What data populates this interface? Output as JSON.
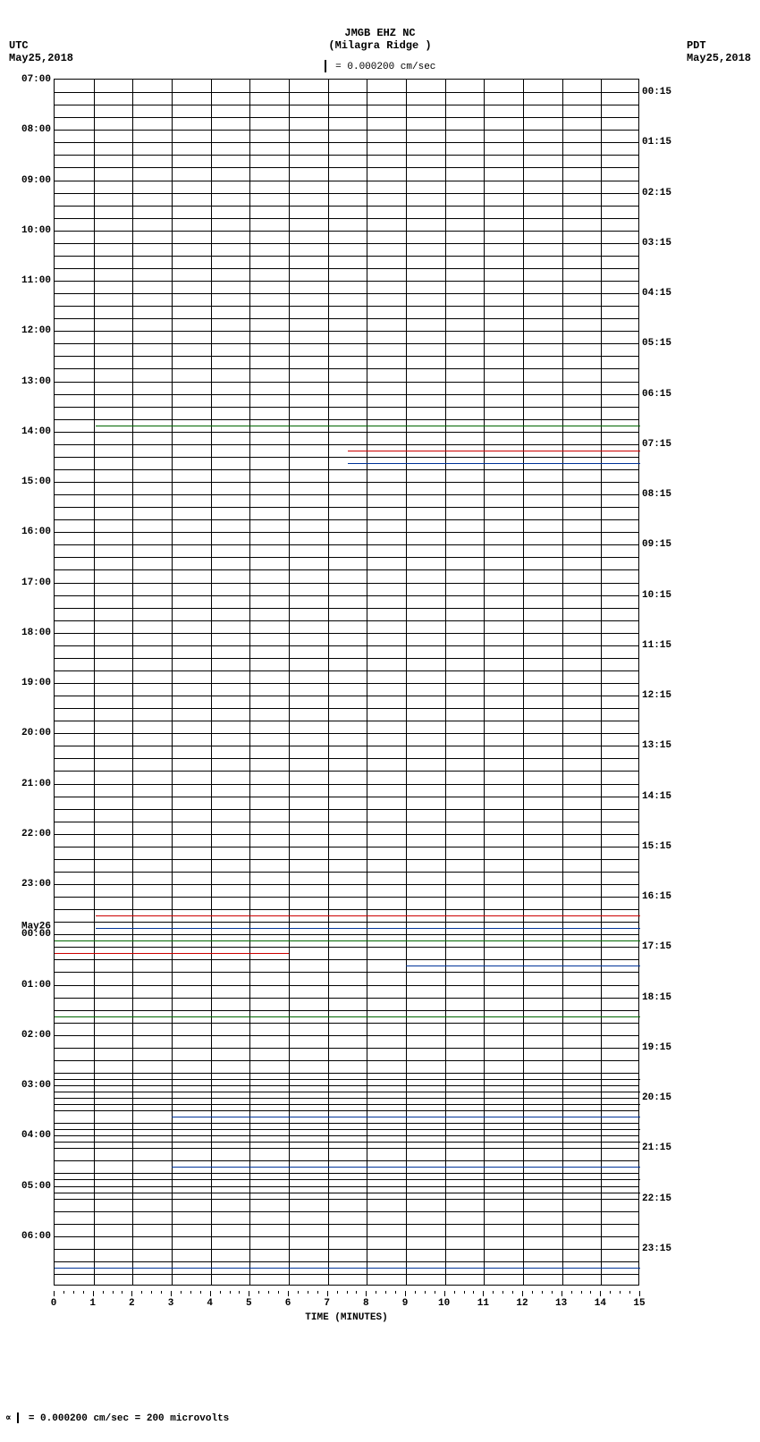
{
  "title": {
    "station": "JMGB EHZ NC",
    "location": "(Milagra Ridge )",
    "scale_text": " = 0.000200 cm/sec"
  },
  "timezone_left": {
    "label": "UTC",
    "date": "May25,2018"
  },
  "timezone_right": {
    "label": "PDT",
    "date": "May25,2018"
  },
  "chart": {
    "type": "seismogram",
    "background_color": "#ffffff",
    "grid_color": "#000000",
    "n_rows": 96,
    "x_minutes": [
      0,
      1,
      2,
      3,
      4,
      5,
      6,
      7,
      8,
      9,
      10,
      11,
      12,
      13,
      14,
      15
    ],
    "vertical_gridlines": 15,
    "xlabel": "TIME (MINUTES)",
    "left_labels": [
      {
        "row": 0,
        "text": "07:00"
      },
      {
        "row": 4,
        "text": "08:00"
      },
      {
        "row": 8,
        "text": "09:00"
      },
      {
        "row": 12,
        "text": "10:00"
      },
      {
        "row": 16,
        "text": "11:00"
      },
      {
        "row": 20,
        "text": "12:00"
      },
      {
        "row": 24,
        "text": "13:00"
      },
      {
        "row": 28,
        "text": "14:00"
      },
      {
        "row": 32,
        "text": "15:00"
      },
      {
        "row": 36,
        "text": "16:00"
      },
      {
        "row": 40,
        "text": "17:00"
      },
      {
        "row": 44,
        "text": "18:00"
      },
      {
        "row": 48,
        "text": "19:00"
      },
      {
        "row": 52,
        "text": "20:00"
      },
      {
        "row": 56,
        "text": "21:00"
      },
      {
        "row": 60,
        "text": "22:00"
      },
      {
        "row": 64,
        "text": "23:00"
      },
      {
        "row": 68,
        "text": "00:00",
        "date_above": "May26"
      },
      {
        "row": 72,
        "text": "01:00"
      },
      {
        "row": 76,
        "text": "02:00"
      },
      {
        "row": 80,
        "text": "03:00"
      },
      {
        "row": 84,
        "text": "04:00"
      },
      {
        "row": 88,
        "text": "05:00"
      },
      {
        "row": 92,
        "text": "06:00"
      }
    ],
    "right_labels": [
      {
        "row": 1,
        "text": "00:15"
      },
      {
        "row": 5,
        "text": "01:15"
      },
      {
        "row": 9,
        "text": "02:15"
      },
      {
        "row": 13,
        "text": "03:15"
      },
      {
        "row": 17,
        "text": "04:15"
      },
      {
        "row": 21,
        "text": "05:15"
      },
      {
        "row": 25,
        "text": "06:15"
      },
      {
        "row": 29,
        "text": "07:15"
      },
      {
        "row": 33,
        "text": "08:15"
      },
      {
        "row": 37,
        "text": "09:15"
      },
      {
        "row": 41,
        "text": "10:15"
      },
      {
        "row": 45,
        "text": "11:15"
      },
      {
        "row": 49,
        "text": "12:15"
      },
      {
        "row": 53,
        "text": "13:15"
      },
      {
        "row": 57,
        "text": "14:15"
      },
      {
        "row": 61,
        "text": "15:15"
      },
      {
        "row": 65,
        "text": "16:15"
      },
      {
        "row": 69,
        "text": "17:15"
      },
      {
        "row": 73,
        "text": "18:15"
      },
      {
        "row": 77,
        "text": "19:15"
      },
      {
        "row": 81,
        "text": "20:15"
      },
      {
        "row": 85,
        "text": "21:15"
      },
      {
        "row": 89,
        "text": "22:15"
      },
      {
        "row": 93,
        "text": "23:15"
      }
    ],
    "trace_colors": [
      "#000000",
      "#cc0000",
      "#003399",
      "#006600"
    ],
    "signal_traces": [
      {
        "row": 27,
        "color": "#006600",
        "x0": 0.07,
        "x1": 1.0
      },
      {
        "row": 29,
        "color": "#cc0000",
        "x0": 0.5,
        "x1": 1.0
      },
      {
        "row": 30,
        "color": "#003399",
        "x0": 0.5,
        "x1": 1.0
      },
      {
        "row": 66,
        "color": "#cc0000",
        "x0": 0.07,
        "x1": 1.0
      },
      {
        "row": 67,
        "color": "#003399",
        "x0": 0.07,
        "x1": 1.0
      },
      {
        "row": 68,
        "color": "#006600",
        "x0": 0.0,
        "x1": 1.0
      },
      {
        "row": 69,
        "color": "#cc0000",
        "x0": 0.0,
        "x1": 0.4
      },
      {
        "row": 70,
        "color": "#003399",
        "x0": 0.6,
        "x1": 1.0
      },
      {
        "row": 74,
        "color": "#006600",
        "x0": 0.0,
        "x1": 1.0
      },
      {
        "row": 79,
        "color": "#000000",
        "x0": 0.0,
        "x1": 1.0
      },
      {
        "row": 80,
        "color": "#000000",
        "x0": 0.0,
        "x1": 1.0
      },
      {
        "row": 81,
        "color": "#000000",
        "x0": 0.0,
        "x1": 1.0
      },
      {
        "row": 82,
        "color": "#003399",
        "x0": 0.2,
        "x1": 1.0
      },
      {
        "row": 83,
        "color": "#000000",
        "x0": 0.0,
        "x1": 1.0
      },
      {
        "row": 84,
        "color": "#000000",
        "x0": 0.0,
        "x1": 1.0
      },
      {
        "row": 86,
        "color": "#003399",
        "x0": 0.2,
        "x1": 1.0
      },
      {
        "row": 87,
        "color": "#000000",
        "x0": 0.0,
        "x1": 1.0
      },
      {
        "row": 88,
        "color": "#000000",
        "x0": 0.0,
        "x1": 1.0
      },
      {
        "row": 94,
        "color": "#003399",
        "x0": 0.0,
        "x1": 1.0
      }
    ]
  },
  "footer": {
    "text": " = 0.000200 cm/sec =    200 microvolts",
    "prefix": "∝"
  }
}
